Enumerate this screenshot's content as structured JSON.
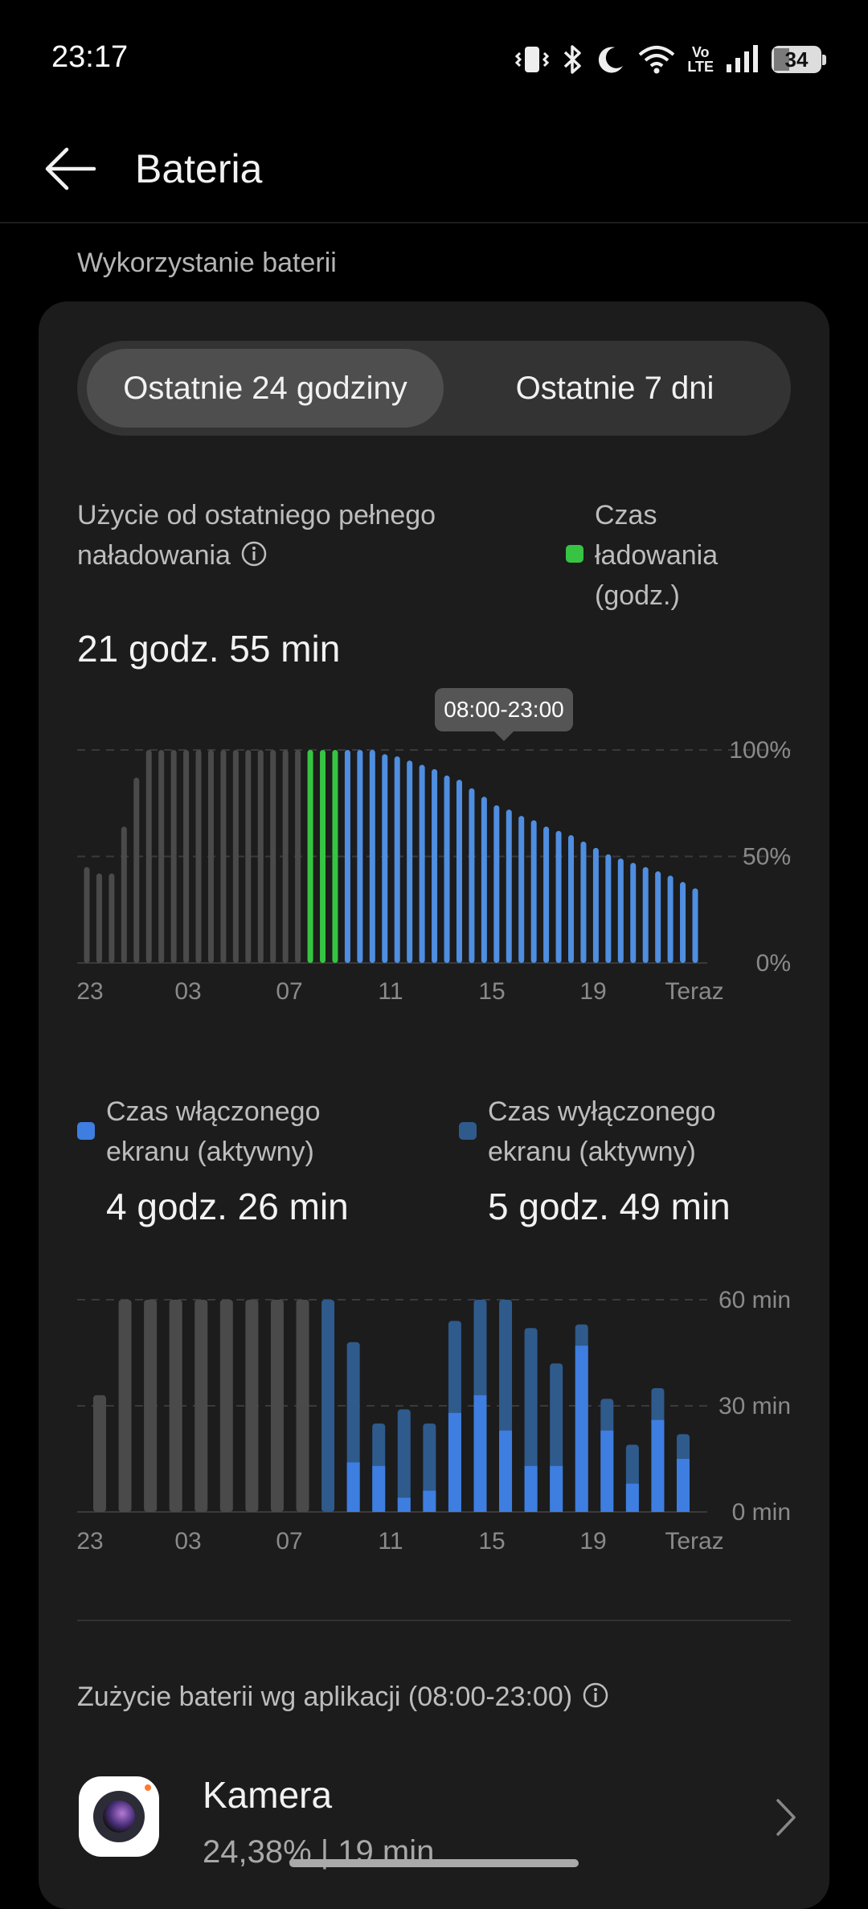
{
  "status_bar": {
    "time": "23:17",
    "battery_level": "34",
    "icons": [
      "vibrate-icon",
      "bluetooth-icon",
      "moon-icon",
      "wifi-icon",
      "volte-icon",
      "signal-icon",
      "battery-icon"
    ],
    "volte_text_top": "Vo",
    "volte_text_bottom": "LTE"
  },
  "app_bar": {
    "title": "Bateria"
  },
  "section": {
    "label": "Wykorzystanie baterii"
  },
  "tabs": [
    {
      "label": "Ostatnie 24 godziny",
      "selected": true
    },
    {
      "label": "Ostatnie 7 dni",
      "selected": false
    }
  ],
  "usage": {
    "label": "Użycie od ostatniego pełnego naładowania",
    "value": "21 godz. 55 min",
    "charge_legend": "Czas ładowania (godz.)"
  },
  "tooltip": "08:00-23:00",
  "colors": {
    "gray_bar": "#4a4a4a",
    "charging": "#37c442",
    "usage_blue": "#4f8ee0",
    "screen_on": "#3d7ee0",
    "screen_off": "#2f5a8c",
    "grid": "#3a3a3a",
    "axis_text": "#8a8a8a"
  },
  "chart_data": [
    {
      "type": "bar",
      "x_tick_labels": [
        "23",
        "03",
        "07",
        "11",
        "15",
        "19",
        "Teraz"
      ],
      "y_tick_labels": [
        "100%",
        "50%",
        "0%"
      ],
      "ylim": [
        0,
        100
      ],
      "bar_states": [
        "gray",
        "gray",
        "gray",
        "gray",
        "gray",
        "gray",
        "gray",
        "gray",
        "gray",
        "gray",
        "gray",
        "gray",
        "gray",
        "gray",
        "gray",
        "gray",
        "gray",
        "gray",
        "charging",
        "charging",
        "charging",
        "usage",
        "usage",
        "usage",
        "usage",
        "usage",
        "usage",
        "usage",
        "usage",
        "usage",
        "usage",
        "usage",
        "usage",
        "usage",
        "usage",
        "usage",
        "usage",
        "usage",
        "usage",
        "usage",
        "usage",
        "usage",
        "usage",
        "usage",
        "usage",
        "usage",
        "usage",
        "usage",
        "usage",
        "usage"
      ],
      "values": [
        45,
        42,
        42,
        64,
        87,
        100,
        100,
        100,
        100,
        100,
        100,
        100,
        100,
        100,
        100,
        100,
        100,
        100,
        100,
        100,
        100,
        100,
        100,
        100,
        98,
        97,
        95,
        93,
        91,
        88,
        86,
        82,
        78,
        74,
        72,
        69,
        67,
        64,
        62,
        60,
        57,
        54,
        51,
        49,
        47,
        45,
        43,
        41,
        38,
        35
      ]
    },
    {
      "type": "bar",
      "x_tick_labels": [
        "23",
        "03",
        "07",
        "11",
        "15",
        "19",
        "Teraz"
      ],
      "y_tick_labels": [
        "60 min",
        "30 min",
        "0 min"
      ],
      "ylim": [
        0,
        60
      ],
      "series": [
        {
          "name": "Czas włączonego ekranu (aktywny)",
          "values": [
            0,
            0,
            0,
            0,
            0,
            0,
            0,
            0,
            0,
            0,
            14,
            13,
            4,
            6,
            28,
            33,
            23,
            13,
            13,
            47,
            23,
            8,
            26,
            15
          ]
        },
        {
          "name": "Czas wyłączonego ekranu (aktywny)",
          "values": [
            0,
            0,
            0,
            0,
            0,
            0,
            0,
            0,
            0,
            60,
            34,
            12,
            25,
            19,
            26,
            27,
            37,
            39,
            29,
            6,
            9,
            11,
            9,
            7
          ]
        },
        {
          "name": "",
          "values": [
            33,
            60,
            60,
            60,
            60,
            60,
            60,
            60,
            60,
            0,
            0,
            0,
            0,
            0,
            0,
            0,
            0,
            0,
            0,
            0,
            0,
            0,
            0,
            0
          ]
        }
      ]
    }
  ],
  "screen_legend": {
    "on": {
      "label": "Czas włączonego ekranu (aktywny)",
      "value": "4 godz. 26 min"
    },
    "off": {
      "label": "Czas wyłączonego ekranu (aktywny)",
      "value": "5 godz. 49 min"
    }
  },
  "apps_section": {
    "title": "Zużycie baterii wg aplikacji (08:00-23:00)",
    "apps": [
      {
        "name": "Kamera",
        "stats": "24,38%  |  19 min",
        "icon": "camera-icon"
      }
    ]
  }
}
